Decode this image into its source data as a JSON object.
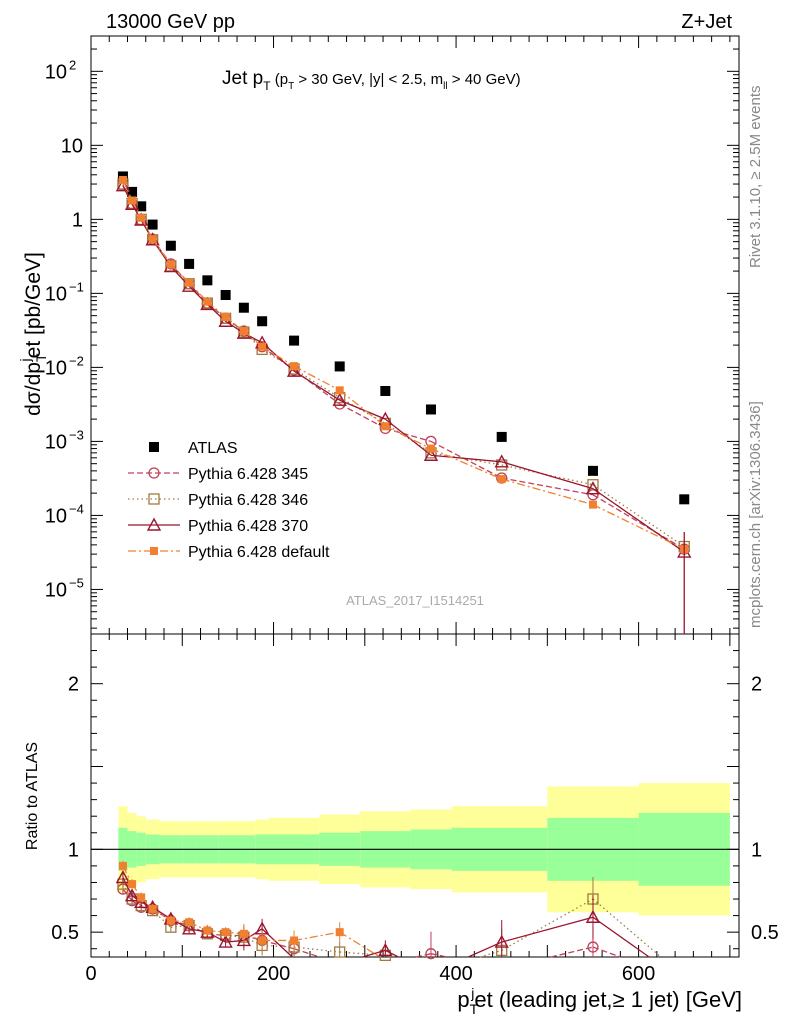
{
  "header": {
    "left": "13000 GeV pp",
    "right": "Z+Jet"
  },
  "side": {
    "rivet": "Rivet 3.1.10, ≥ 2.5M events",
    "mcplots": "mcplots.cern.ch [arXiv:1306.3436]"
  },
  "watermark": "ATLAS_2017_I1514251",
  "colors": {
    "atlas": "#000000",
    "p345": "#c0405a",
    "p346": "#a07a40",
    "p370": "#9b1530",
    "pdefault": "#f08030",
    "band_inner": "#99ff99",
    "band_outer": "#ffff99"
  },
  "chart_data": [
    {
      "type": "scatter",
      "panel": "main",
      "title_main": "Jet p",
      "title_sub": "T",
      "title_cut": "(p",
      "title_cut_sub": "T",
      "title_cut_rest": " > 30 GeV, |y| < 2.5, m",
      "title_cut_sub2": "ll",
      "title_cut_end": " > 40 GeV)",
      "ylabel": "dσ/dp",
      "ylabel_sub": "T",
      "ylabel_sup": "j",
      "ylabel_rest": "et [pb/GeV]",
      "yscale": "log",
      "ylim": [
        2.5e-06,
        300
      ],
      "xlim": [
        0,
        710
      ],
      "ytick_labels": [
        {
          "base": "10",
          "exp": "2",
          "v": 100
        },
        {
          "base": "10",
          "exp": "",
          "v": 10
        },
        {
          "base": "1",
          "exp": "",
          "v": 1
        },
        {
          "base": "10",
          "exp": "−1",
          "v": 0.1
        },
        {
          "base": "10",
          "exp": "−2",
          "v": 0.01
        },
        {
          "base": "10",
          "exp": "−3",
          "v": 0.001
        },
        {
          "base": "10",
          "exp": "−4",
          "v": 0.0001
        },
        {
          "base": "10",
          "exp": "−5",
          "v": 1e-05
        }
      ],
      "legend_position": "lower-left",
      "series": [
        {
          "name": "ATLAS",
          "style": "square-black",
          "x": [
            35,
            45,
            55,
            67.5,
            87.5,
            107.5,
            127.5,
            147.5,
            167.5,
            187.5,
            222.5,
            272.5,
            322.5,
            372.5,
            450,
            550,
            650
          ],
          "y": [
            3.8,
            2.35,
            1.5,
            0.85,
            0.44,
            0.25,
            0.15,
            0.095,
            0.064,
            0.042,
            0.023,
            0.0103,
            0.0048,
            0.0027,
            0.00115,
            0.0004,
            0.000165
          ]
        },
        {
          "name": "Pythia 6.428 345",
          "style": "circle-dashed",
          "x": [
            35,
            45,
            55,
            67.5,
            87.5,
            107.5,
            127.5,
            147.5,
            167.5,
            187.5,
            222.5,
            272.5,
            322.5,
            372.5,
            450,
            550,
            650
          ],
          "y": [
            2.9,
            1.62,
            0.98,
            0.54,
            0.25,
            0.135,
            0.074,
            0.046,
            0.031,
            0.019,
            0.0092,
            0.0032,
            0.0015,
            0.001,
            0.00032,
            0.00019,
            3.5e-05
          ]
        },
        {
          "name": "Pythia 6.428 346",
          "style": "square-open-dotted",
          "x": [
            35,
            45,
            55,
            67.5,
            87.5,
            107.5,
            127.5,
            147.5,
            167.5,
            187.5,
            222.5,
            272.5,
            322.5,
            372.5,
            450,
            550,
            650
          ],
          "y": [
            3.0,
            1.65,
            1.0,
            0.53,
            0.235,
            0.135,
            0.074,
            0.046,
            0.03,
            0.0175,
            0.0095,
            0.0039,
            0.00175,
            0.0007,
            0.00048,
            0.00026,
            3.8e-05
          ]
        },
        {
          "name": "Pythia 6.428 370",
          "style": "triangle-solid",
          "x": [
            35,
            45,
            55,
            67.5,
            87.5,
            107.5,
            127.5,
            147.5,
            167.5,
            187.5,
            222.5,
            272.5,
            322.5,
            372.5,
            450,
            550,
            650
          ],
          "y": [
            2.85,
            1.6,
            0.98,
            0.53,
            0.23,
            0.125,
            0.071,
            0.042,
            0.029,
            0.0215,
            0.0089,
            0.0036,
            0.002,
            0.00065,
            0.00053,
            0.00023,
            3.2e-05
          ]
        },
        {
          "name": "Pythia 6.428 default",
          "style": "square-filled-dashdot",
          "x": [
            35,
            45,
            55,
            67.5,
            87.5,
            107.5,
            127.5,
            147.5,
            167.5,
            187.5,
            222.5,
            272.5,
            322.5,
            372.5,
            450,
            550,
            650
          ],
          "y": [
            3.4,
            1.8,
            1.05,
            0.54,
            0.245,
            0.14,
            0.077,
            0.048,
            0.031,
            0.019,
            0.0104,
            0.0049,
            0.0016,
            0.0008,
            0.00031,
            0.00014,
            3.5e-05
          ]
        }
      ]
    },
    {
      "type": "line",
      "panel": "ratio",
      "ylabel": "Ratio to ATLAS",
      "xlabel": "p",
      "xlabel_sub": "T",
      "xlabel_sup": "j",
      "xlabel_rest": "et (leading jet,≥ 1 jet) [GeV]",
      "ylim": [
        0.35,
        2.3
      ],
      "xlim": [
        0,
        710
      ],
      "yticks": [
        0.5,
        1,
        2
      ],
      "ytick_labels": [
        "0.5",
        "1",
        "2"
      ],
      "xticks": [
        0,
        200,
        400,
        600
      ],
      "xtick_labels": [
        "0",
        "200",
        "400",
        "600"
      ],
      "bands": {
        "edges": [
          30,
          40,
          50,
          60,
          75,
          100,
          115,
          140,
          155,
          180,
          195,
          250,
          295,
          350,
          395,
          500,
          600,
          700
        ],
        "inner": [
          0.13,
          0.11,
          0.1,
          0.09,
          0.085,
          0.085,
          0.085,
          0.085,
          0.085,
          0.09,
          0.09,
          0.1,
          0.11,
          0.12,
          0.13,
          0.19,
          0.22
        ],
        "outer": [
          0.26,
          0.22,
          0.2,
          0.18,
          0.17,
          0.17,
          0.17,
          0.17,
          0.17,
          0.18,
          0.19,
          0.21,
          0.23,
          0.24,
          0.26,
          0.38,
          0.4
        ]
      },
      "series": [
        {
          "name": "Pythia 6.428 345",
          "x": [
            35,
            45,
            55,
            67.5,
            87.5,
            107.5,
            127.5,
            147.5,
            167.5,
            187.5,
            222.5,
            272.5,
            322.5,
            372.5,
            450,
            550,
            650
          ],
          "y": [
            0.76,
            0.69,
            0.65,
            0.64,
            0.57,
            0.54,
            0.49,
            0.48,
            0.48,
            0.45,
            0.4,
            0.31,
            0.31,
            0.37,
            0.28,
            0.41,
            0.21
          ]
        },
        {
          "name": "Pythia 6.428 346",
          "x": [
            35,
            45,
            55,
            67.5,
            87.5,
            107.5,
            127.5,
            147.5,
            167.5,
            187.5,
            222.5,
            272.5,
            322.5,
            372.5,
            450,
            550,
            650
          ],
          "y": [
            0.79,
            0.7,
            0.66,
            0.63,
            0.53,
            0.54,
            0.49,
            0.48,
            0.47,
            0.42,
            0.41,
            0.38,
            0.36,
            0.26,
            0.39,
            0.7,
            0.23
          ]
        },
        {
          "name": "Pythia 6.428 370",
          "x": [
            35,
            45,
            55,
            67.5,
            87.5,
            107.5,
            127.5,
            147.5,
            167.5,
            187.5,
            222.5,
            272.5,
            322.5,
            372.5,
            450,
            550,
            650
          ],
          "y": [
            0.83,
            0.72,
            0.68,
            0.65,
            0.58,
            0.52,
            0.5,
            0.44,
            0.45,
            0.52,
            0.34,
            0.31,
            0.39,
            0.25,
            0.44,
            0.59,
            0.2
          ]
        },
        {
          "name": "Pythia 6.428 default",
          "x": [
            35,
            45,
            55,
            67.5,
            87.5,
            107.5,
            127.5,
            147.5,
            167.5,
            187.5,
            222.5,
            272.5,
            322.5,
            372.5,
            450,
            550,
            650
          ],
          "y": [
            0.9,
            0.79,
            0.71,
            0.64,
            0.57,
            0.56,
            0.51,
            0.5,
            0.49,
            0.45,
            0.45,
            0.5,
            0.33,
            0.31,
            0.28,
            0.34,
            0.21
          ]
        }
      ]
    }
  ]
}
